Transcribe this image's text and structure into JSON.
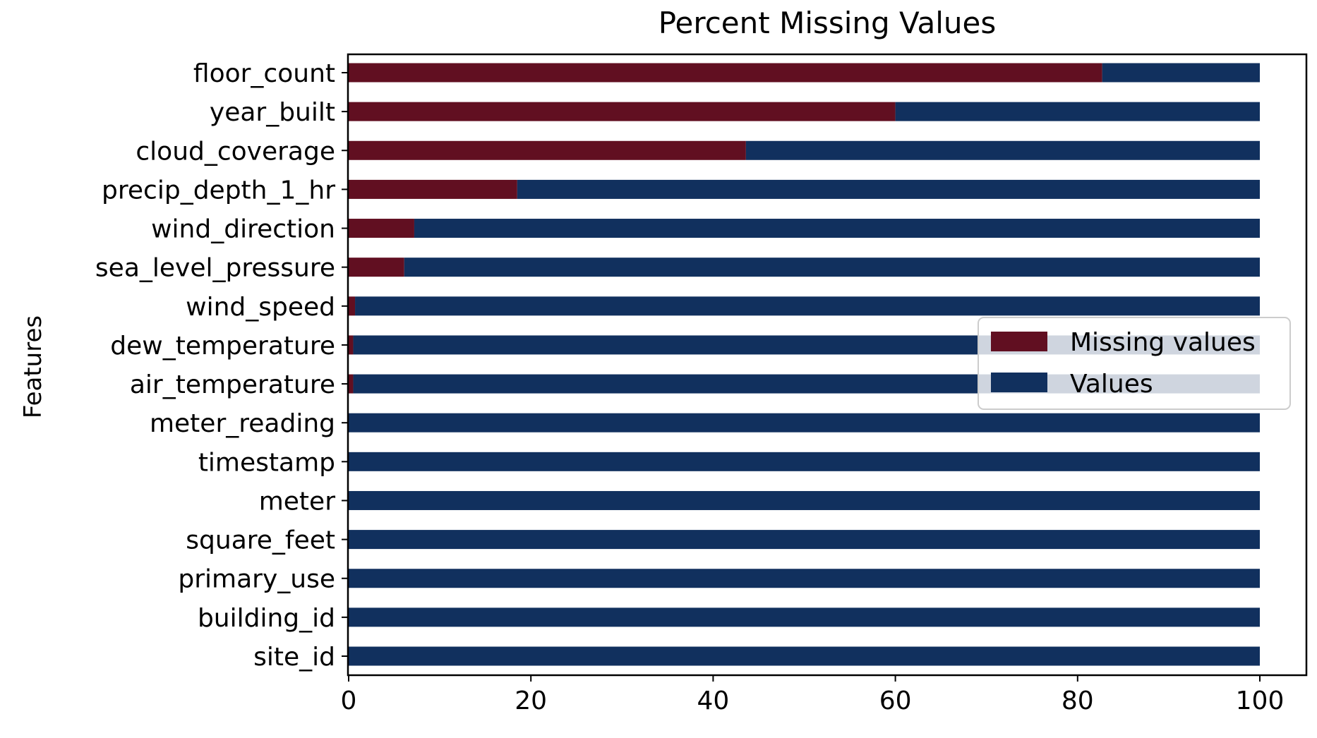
{
  "chart_data": {
    "type": "bar",
    "orientation": "horizontal",
    "stacked": true,
    "title": "Percent Missing Values",
    "xlabel": "",
    "ylabel": "Features",
    "xlim": [
      0,
      100
    ],
    "xticks": [
      0,
      20,
      40,
      60,
      80,
      100
    ],
    "grid": false,
    "legend_position": "center-right",
    "categories": [
      "floor_count",
      "year_built",
      "cloud_coverage",
      "precip_depth_1_hr",
      "wind_direction",
      "sea_level_pressure",
      "wind_speed",
      "dew_temperature",
      "air_temperature",
      "meter_reading",
      "timestamp",
      "meter",
      "square_feet",
      "primary_use",
      "building_id",
      "site_id"
    ],
    "series": [
      {
        "name": "Missing values",
        "color": "#610f21",
        "values": [
          82.7,
          60.0,
          43.6,
          18.5,
          7.2,
          6.1,
          0.7,
          0.5,
          0.5,
          0,
          0,
          0,
          0,
          0,
          0,
          0
        ]
      },
      {
        "name": "Values",
        "color": "#11305e",
        "values": [
          17.3,
          40.0,
          56.4,
          81.5,
          92.8,
          93.9,
          99.3,
          99.5,
          99.5,
          100,
          100,
          100,
          100,
          100,
          100,
          100
        ]
      }
    ]
  }
}
